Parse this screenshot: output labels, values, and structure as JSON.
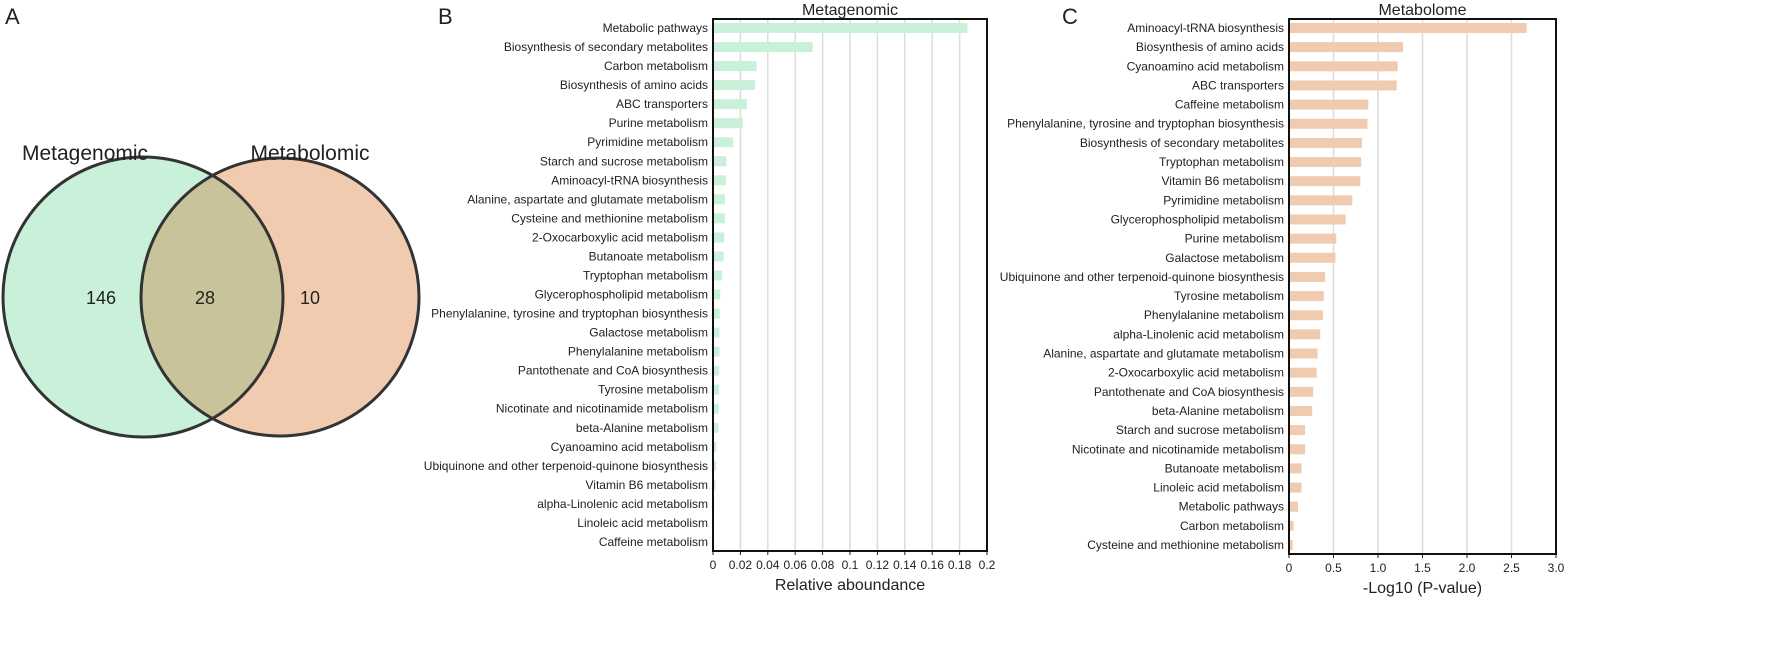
{
  "panels": {
    "a": "A",
    "b": "B",
    "c": "C"
  },
  "colors": {
    "metagenomic": "#c9f0d9",
    "metabolome": "#f1cbb0",
    "overlap": "#c9c39b",
    "grid": "#dcdcdc"
  },
  "chart_data": [
    {
      "type": "venn",
      "sets": [
        {
          "name": "Metagenomic",
          "only": "146"
        },
        {
          "name": "Metabolomic",
          "only": "10"
        }
      ],
      "intersection": "28"
    },
    {
      "type": "bar",
      "orientation": "horizontal",
      "title": "Metagenomic",
      "xlabel": "Relative aboundance",
      "xlim": [
        0,
        0.2
      ],
      "xticks": [
        "0",
        "0.02",
        "0.04",
        "0.06",
        "0.08",
        "0.1",
        "0.12",
        "0.14",
        "0.16",
        "0.18",
        "0.2"
      ],
      "grid": true,
      "categories": [
        "Metabolic pathways",
        "Biosynthesis of secondary metabolites",
        "Carbon metabolism",
        "Biosynthesis of amino acids",
        "ABC transporters",
        "Purine metabolism",
        "Pyrimidine metabolism",
        "Starch and sucrose metabolism",
        "Aminoacyl-tRNA biosynthesis",
        "Alanine, aspartate and glutamate metabolism",
        "Cysteine and methionine metabolism",
        "2-Oxocarboxylic acid metabolism",
        "Butanoate metabolism",
        "Tryptophan metabolism",
        "Glycerophospholipid metabolism",
        "Phenylalanine, tyrosine and tryptophan biosynthesis",
        "Galactose metabolism",
        "Phenylalanine metabolism",
        "Pantothenate and CoA biosynthesis",
        "Tyrosine metabolism",
        "Nicotinate and nicotinamide metabolism",
        "beta-Alanine metabolism",
        "Cyanoamino acid metabolism",
        "Ubiquinone and other terpenoid-quinone biosynthesis",
        "Vitamin B6 metabolism",
        "alpha-Linolenic acid metabolism",
        "Linoleic acid metabolism",
        "Caffeine metabolism"
      ],
      "values": [
        0.185,
        0.072,
        0.031,
        0.03,
        0.024,
        0.021,
        0.014,
        0.009,
        0.0088,
        0.008,
        0.008,
        0.0075,
        0.007,
        0.006,
        0.0045,
        0.0042,
        0.004,
        0.004,
        0.0038,
        0.0037,
        0.0035,
        0.0033,
        0.0017,
        0.0015,
        0.001,
        0.0002,
        0.0001,
        0.0001
      ]
    },
    {
      "type": "bar",
      "orientation": "horizontal",
      "title": "Metabolome",
      "xlabel": "-Log10 (P-value)",
      "xlim": [
        0,
        3.0
      ],
      "xticks": [
        "0",
        "0.5",
        "1.0",
        "1.5",
        "2.0",
        "2.5",
        "3.0"
      ],
      "grid": true,
      "categories": [
        "Aminoacyl-tRNA biosynthesis",
        "Biosynthesis of amino acids",
        "Cyanoamino acid metabolism",
        "ABC transporters",
        "Caffeine metabolism",
        "Phenylalanine, tyrosine and tryptophan biosynthesis",
        "Biosynthesis of secondary metabolites",
        "Tryptophan metabolism",
        "Vitamin B6 metabolism",
        "Pyrimidine metabolism",
        "Glycerophospholipid metabolism",
        "Purine metabolism",
        "Galactose metabolism",
        "Ubiquinone and other terpenoid-quinone biosynthesis",
        "Tyrosine metabolism",
        "Phenylalanine metabolism",
        "alpha-Linolenic acid metabolism",
        "Alanine, aspartate and glutamate metabolism",
        "2-Oxocarboxylic acid metabolism",
        "Pantothenate and CoA biosynthesis",
        "beta-Alanine metabolism",
        "Starch and sucrose metabolism",
        "Nicotinate and nicotinamide metabolism",
        "Butanoate metabolism",
        "Linoleic acid metabolism",
        "Metabolic pathways",
        "Carbon metabolism",
        "Cysteine and methionine metabolism"
      ],
      "values": [
        2.66,
        1.27,
        1.21,
        1.2,
        0.88,
        0.87,
        0.81,
        0.8,
        0.79,
        0.7,
        0.625,
        0.52,
        0.51,
        0.395,
        0.38,
        0.37,
        0.34,
        0.31,
        0.3,
        0.26,
        0.25,
        0.17,
        0.17,
        0.13,
        0.13,
        0.09,
        0.04,
        0.03
      ]
    }
  ]
}
